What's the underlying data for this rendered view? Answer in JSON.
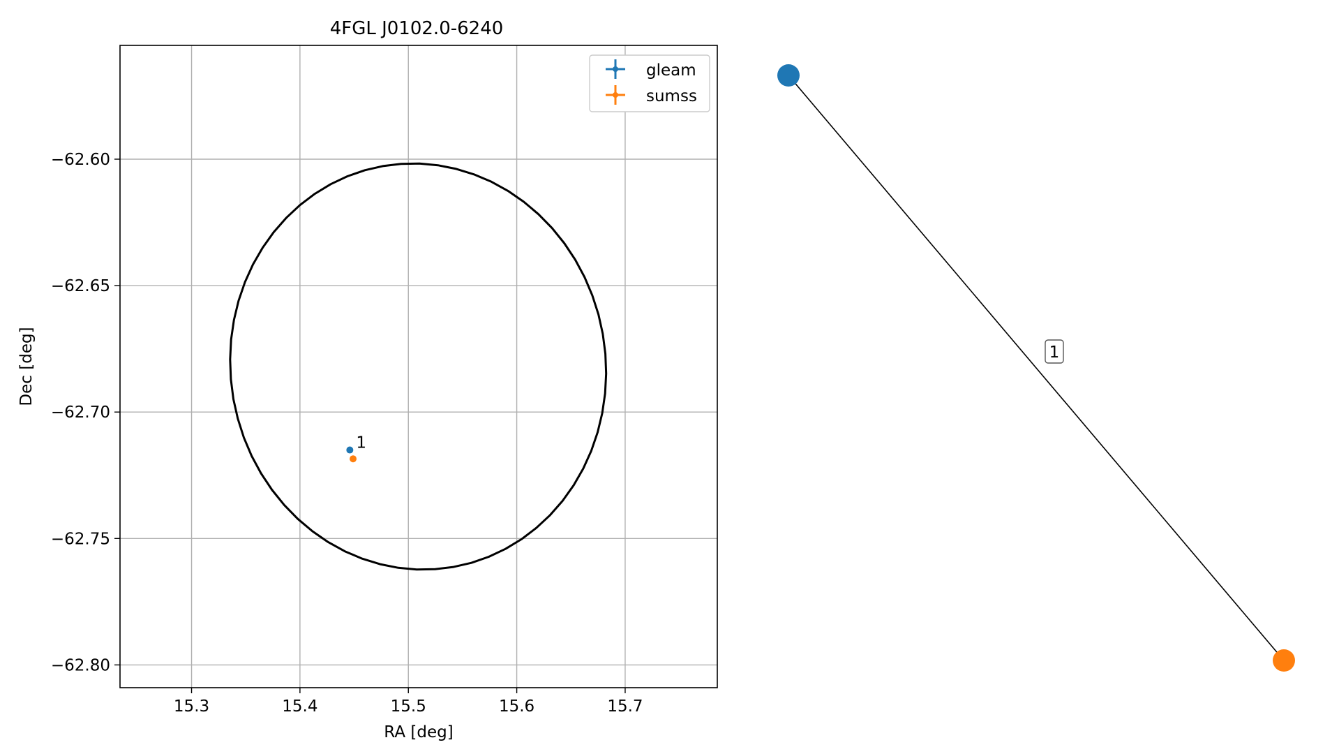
{
  "chart_data": [
    {
      "type": "scatter",
      "title": "4FGL J0102.0-6240",
      "xlabel": "RA [deg]",
      "ylabel": "Dec [deg]",
      "xlim": [
        15.234,
        15.785
      ],
      "ylim": [
        -62.809,
        -62.555
      ],
      "xticks": [
        15.3,
        15.4,
        15.5,
        15.6,
        15.7
      ],
      "xtick_labels": [
        "15.3",
        "15.4",
        "15.5",
        "15.6",
        "15.7"
      ],
      "yticks": [
        -62.6,
        -62.65,
        -62.7,
        -62.75,
        -62.8
      ],
      "ytick_labels": [
        "−62.60",
        "−62.65",
        "−62.70",
        "−62.75",
        "−62.80"
      ],
      "grid": true,
      "legend_position": "top-right",
      "ellipse": {
        "center": [
          15.509,
          -62.682
        ],
        "ra_half_width": 0.173,
        "dec_half_height": 0.0805,
        "tilt_deg": -10,
        "color": "#000000"
      },
      "series": [
        {
          "name": "gleam",
          "color": "#1f77b4",
          "x": [
            15.446
          ],
          "y": [
            -62.715
          ]
        },
        {
          "name": "sumss",
          "color": "#ff7f0e",
          "x": [
            15.449
          ],
          "y": [
            -62.7185
          ]
        }
      ],
      "annotations": [
        {
          "text": "1",
          "x": 15.446,
          "y": -62.715
        }
      ]
    },
    {
      "type": "network",
      "nodes": [
        {
          "id": "gleam",
          "color": "#1f77b4",
          "x": 0.0,
          "y": 1.0
        },
        {
          "id": "sumss",
          "color": "#ff7f0e",
          "x": 1.0,
          "y": 0.0
        }
      ],
      "edges": [
        {
          "source": "gleam",
          "target": "sumss",
          "label": "1"
        }
      ]
    }
  ]
}
